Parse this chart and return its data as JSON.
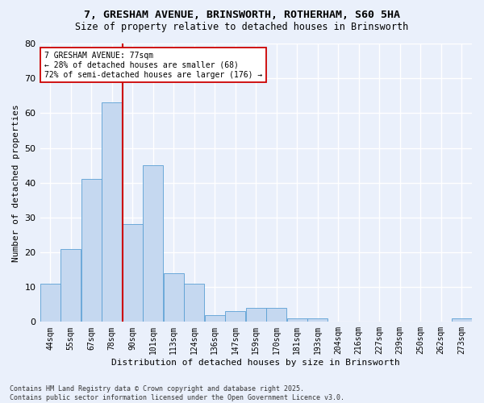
{
  "title_line1": "7, GRESHAM AVENUE, BRINSWORTH, ROTHERHAM, S60 5HA",
  "title_line2": "Size of property relative to detached houses in Brinsworth",
  "xlabel": "Distribution of detached houses by size in Brinsworth",
  "ylabel": "Number of detached properties",
  "categories": [
    "44sqm",
    "55sqm",
    "67sqm",
    "78sqm",
    "90sqm",
    "101sqm",
    "113sqm",
    "124sqm",
    "136sqm",
    "147sqm",
    "159sqm",
    "170sqm",
    "181sqm",
    "193sqm",
    "204sqm",
    "216sqm",
    "227sqm",
    "239sqm",
    "250sqm",
    "262sqm",
    "273sqm"
  ],
  "values": [
    11,
    21,
    41,
    63,
    28,
    45,
    14,
    11,
    2,
    3,
    4,
    4,
    1,
    1,
    0,
    0,
    0,
    0,
    0,
    0,
    1
  ],
  "bar_color": "#c5d8f0",
  "bar_edge_color": "#5a9fd4",
  "vline_index": 3,
  "vline_color": "#cc0000",
  "annotation_line1": "7 GRESHAM AVENUE: 77sqm",
  "annotation_line2": "← 28% of detached houses are smaller (68)",
  "annotation_line3": "72% of semi-detached houses are larger (176) →",
  "annotation_box_color": "#ffffff",
  "annotation_box_edge": "#cc0000",
  "ylim": [
    0,
    80
  ],
  "yticks": [
    0,
    10,
    20,
    30,
    40,
    50,
    60,
    70,
    80
  ],
  "background_color": "#eaf0fb",
  "grid_color": "#ffffff",
  "footer": "Contains HM Land Registry data © Crown copyright and database right 2025.\nContains public sector information licensed under the Open Government Licence v3.0."
}
